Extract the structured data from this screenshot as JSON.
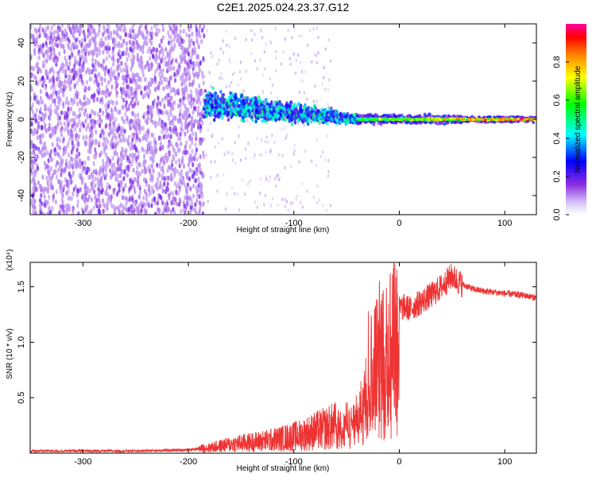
{
  "title": "C2E1.2025.024.23.37.G12",
  "chart_data": [
    {
      "type": "heatmap",
      "title": "C2E1.2025.024.23.37.G12",
      "xlabel": "Height of straight line (km)",
      "ylabel": "Frequency (Hz)",
      "xlim": [
        -350,
        130
      ],
      "ylim": [
        -50,
        50
      ],
      "x_ticks": [
        -300,
        -200,
        -100,
        0,
        100
      ],
      "x_tick_labels": [
        "-300",
        "-200",
        "-100",
        "0",
        "100"
      ],
      "y_ticks": [
        -40,
        -20,
        0,
        20,
        40
      ],
      "y_tick_labels": [
        "-40",
        "-20",
        "0",
        "20",
        "40"
      ],
      "colorbar": {
        "label": "Normalized spectral amplitude",
        "range": [
          0,
          1
        ],
        "ticks": [
          0.0,
          0.2,
          0.4,
          0.6,
          0.8
        ],
        "tick_labels": [
          "0.0",
          "0.2",
          "0.4",
          "0.6",
          "0.8"
        ],
        "colormap": [
          "#ffffff",
          "#d8c8f8",
          "#8a2be2",
          "#0000ff",
          "#00ffff",
          "#00ff00",
          "#ffff00",
          "#ff8000",
          "#ff0000",
          "#ff00a0"
        ]
      },
      "regions": [
        {
          "x_range": [
            -350,
            -185
          ],
          "freq_range": [
            -50,
            50
          ],
          "amplitude": 0.08,
          "description_key": "noise"
        },
        {
          "x_range": [
            -185,
            -40
          ],
          "freq_center": [
            8,
            0
          ],
          "spread_hz": [
            10,
            4
          ],
          "amplitude": 0.35
        },
        {
          "x_range": [
            -40,
            130
          ],
          "freq_center": [
            0,
            0
          ],
          "spread_hz": [
            4,
            2
          ],
          "amplitude": 0.9
        }
      ]
    },
    {
      "type": "line",
      "xlabel": "Height of straight line (km)",
      "ylabel": "SNR (10 * v/v)",
      "y_multiplier": "(x10⁴)",
      "xlim": [
        -350,
        130
      ],
      "ylim": [
        0,
        1.72
      ],
      "x_ticks": [
        -300,
        -200,
        -100,
        0,
        100
      ],
      "x_tick_labels": [
        "-300",
        "-200",
        "-100",
        "0",
        "100"
      ],
      "y_ticks": [
        0.5,
        1.0,
        1.5
      ],
      "y_tick_labels": [
        "0.5",
        "1.0",
        "1.5"
      ],
      "color": "#ee3333",
      "x": [
        -350,
        -300,
        -250,
        -200,
        -180,
        -160,
        -140,
        -120,
        -100,
        -90,
        -80,
        -70,
        -60,
        -50,
        -45,
        -40,
        -35,
        -30,
        -25,
        -20,
        -15,
        -10,
        -5,
        0,
        5,
        10,
        20,
        30,
        40,
        50,
        55,
        60,
        70,
        80,
        90,
        100,
        110,
        120,
        130
      ],
      "y": [
        0.02,
        0.02,
        0.02,
        0.03,
        0.05,
        0.08,
        0.1,
        0.12,
        0.15,
        0.17,
        0.2,
        0.22,
        0.25,
        0.3,
        0.28,
        0.35,
        0.45,
        0.9,
        0.8,
        1.05,
        0.95,
        1.1,
        1.2,
        1.3,
        1.32,
        1.3,
        1.36,
        1.42,
        1.5,
        1.6,
        1.55,
        1.52,
        1.48,
        1.46,
        1.45,
        1.44,
        1.43,
        1.42,
        1.4
      ]
    }
  ]
}
